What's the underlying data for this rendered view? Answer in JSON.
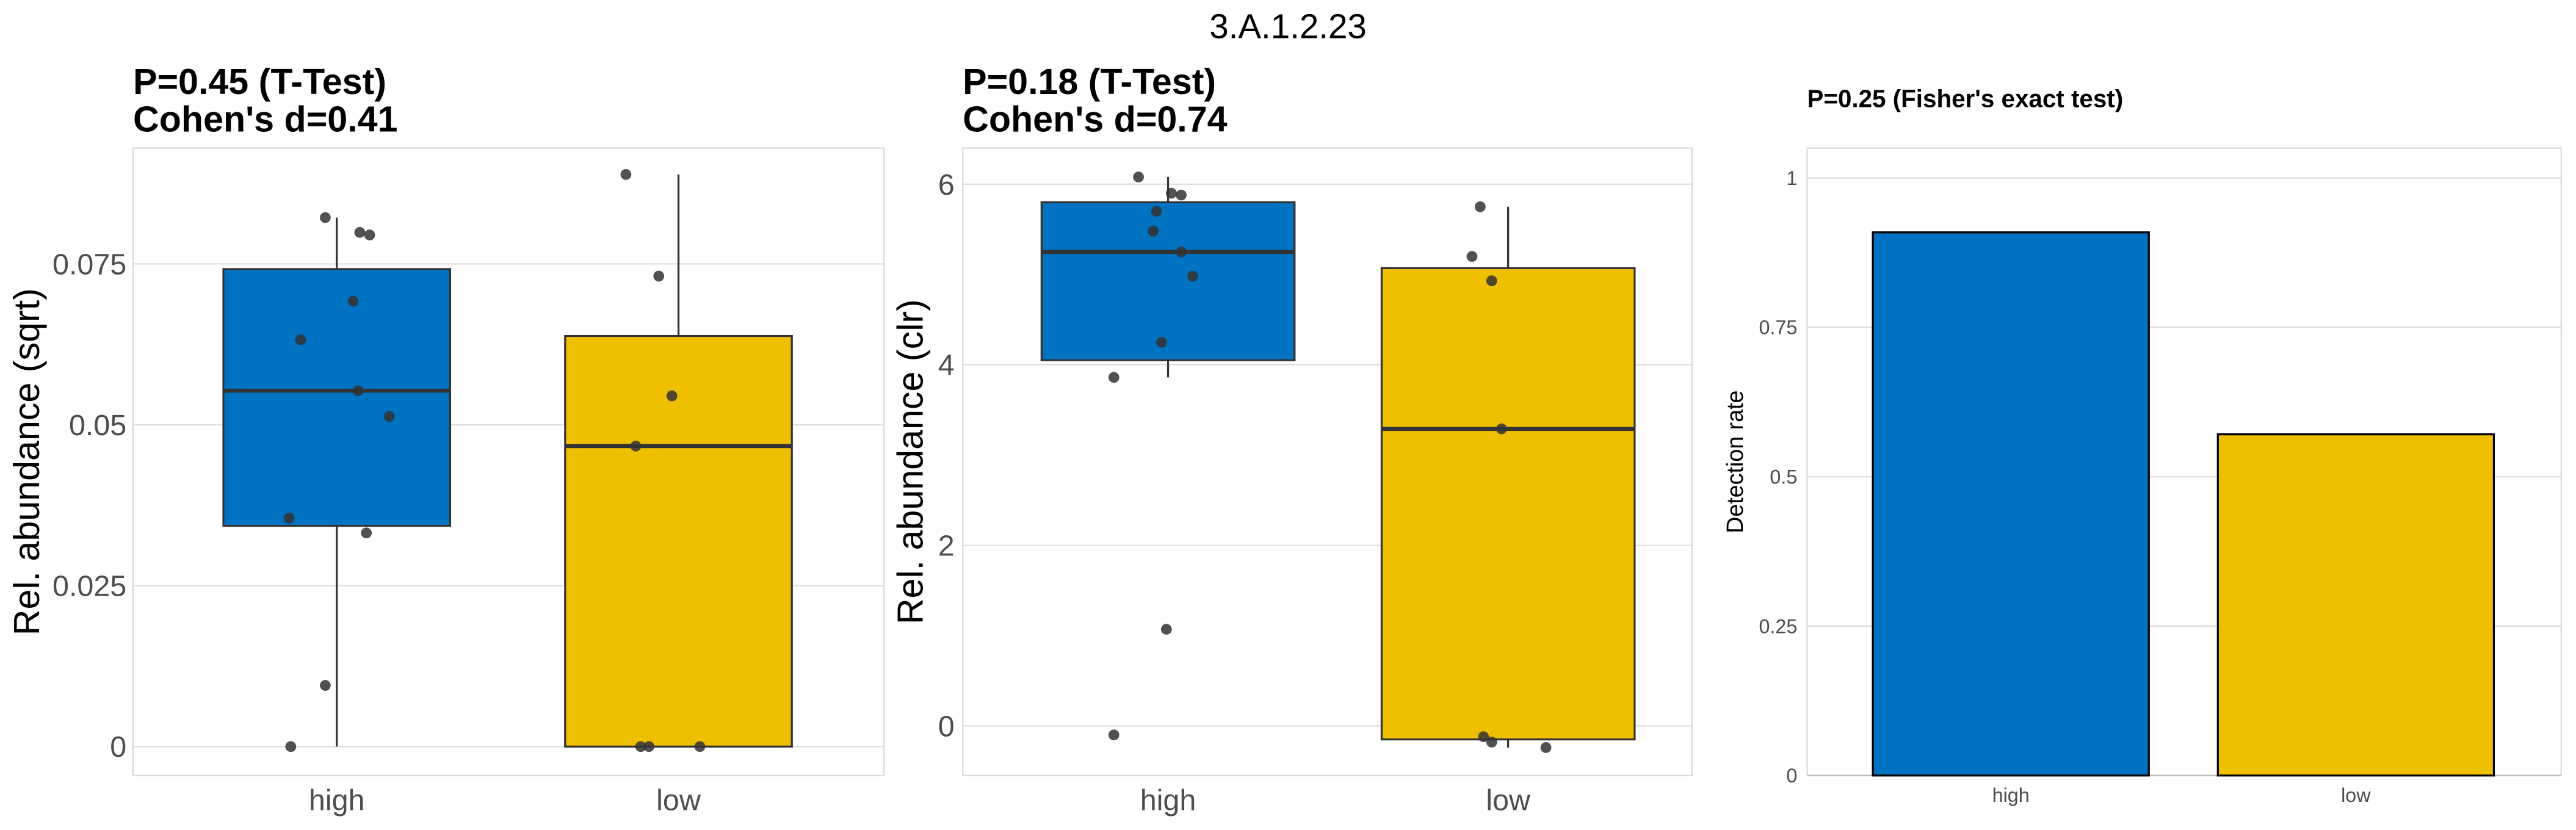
{
  "title": "3.A.1.2.23",
  "colors": {
    "high": "#0072C2",
    "low": "#EFC000",
    "point": "#333333"
  },
  "chart_data": [
    {
      "type": "box",
      "title_lines": [
        "P=0.45 (T-Test)",
        "Cohen's d=0.41"
      ],
      "ylabel": "Rel. abundance (sqrt)",
      "categories": [
        "high",
        "low"
      ],
      "yticks": [
        0,
        0.025,
        0.05,
        0.075
      ],
      "ytick_labels": [
        "0",
        "0.025",
        "0.05",
        "0.075"
      ],
      "ylim": [
        -0.0045,
        0.093
      ],
      "grid": true,
      "boxes": [
        {
          "group": "high",
          "min": 0,
          "q1": 0.0343,
          "median": 0.0553,
          "q3": 0.0742,
          "max": 0.0822,
          "points": [
            0.0822,
            0.0799,
            0.0795,
            0.0692,
            0.0632,
            0.0553,
            0.0513,
            0.0355,
            0.0332,
            0.0095,
            0
          ]
        },
        {
          "group": "low",
          "min": 0,
          "q1": 0,
          "median": 0.0467,
          "q3": 0.0638,
          "max": 0.0889,
          "points": [
            0.0889,
            0.0731,
            0.0545,
            0.0467,
            0,
            0,
            0
          ]
        }
      ]
    },
    {
      "type": "box",
      "title_lines": [
        "P=0.18 (T-Test)",
        "Cohen's d=0.74"
      ],
      "ylabel": "Rel. abundance (clr)",
      "categories": [
        "high",
        "low"
      ],
      "yticks": [
        0,
        2,
        4,
        6
      ],
      "ytick_labels": [
        "0",
        "2",
        "4",
        "6"
      ],
      "ylim": [
        -0.55,
        6.4
      ],
      "grid": true,
      "boxes": [
        {
          "group": "high",
          "min": 3.86,
          "q1": 4.05,
          "median": 5.25,
          "q3": 5.8,
          "max": 6.08,
          "points": [
            6.08,
            5.9,
            5.88,
            5.7,
            5.48,
            5.25,
            4.98,
            4.25,
            3.86,
            1.07,
            -0.1
          ]
        },
        {
          "group": "low",
          "min": -0.24,
          "q1": -0.15,
          "median": 3.29,
          "q3": 5.07,
          "max": 5.75,
          "points": [
            5.75,
            5.2,
            4.93,
            3.29,
            -0.12,
            -0.18,
            -0.24
          ]
        }
      ]
    },
    {
      "type": "bar",
      "title_lines": [
        "P=0.25 (Fisher's exact test)"
      ],
      "ylabel": "Detection rate",
      "categories": [
        "high",
        "low"
      ],
      "values": [
        0.909,
        0.571
      ],
      "yticks": [
        0,
        0.25,
        0.5,
        0.75,
        1
      ],
      "ytick_labels": [
        "0",
        "0.25",
        "0.5",
        "0.75",
        "1"
      ],
      "ylim": [
        0,
        1.05
      ],
      "grid": true
    }
  ]
}
